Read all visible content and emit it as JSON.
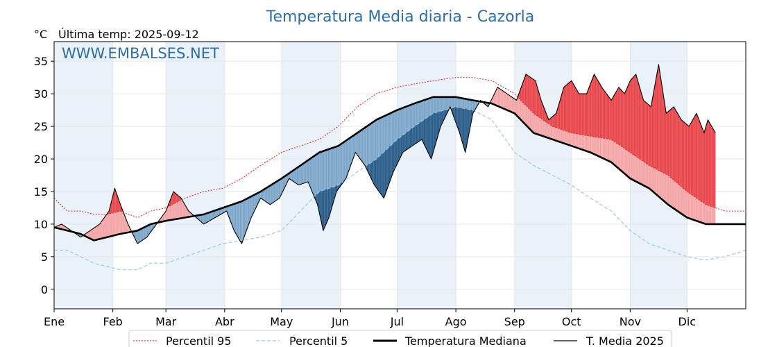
{
  "chart_data": {
    "type": "line",
    "title": "Temperatura Media diaria - Cazorla",
    "unit_label": "°C",
    "last_temp_label": "Última temp: 2025-09-12",
    "watermark": "WWW.EMBALSES.NET",
    "months": [
      "Ene",
      "Feb",
      "Mar",
      "Abr",
      "May",
      "Jun",
      "Jul",
      "Ago",
      "Sep",
      "Oct",
      "Nov",
      "Dic"
    ],
    "y_ticks": [
      0,
      5,
      10,
      15,
      20,
      25,
      30,
      35
    ],
    "ylim": [
      -3,
      38
    ],
    "xlim": [
      1,
      366
    ],
    "grid": true,
    "legend_position": "bottom-center",
    "colors": {
      "p95": "#e31a1c",
      "p5": "#9ecae1",
      "median": "#000000",
      "current": "#000000",
      "above_fill": "#f4a6a6",
      "above_strong_fill": "#e8474c",
      "below_fill": "#7da7ca",
      "below_strong_fill": "#2c5f8a",
      "month_band": "#e9f1f9",
      "title": "#2e6ea6"
    },
    "series": [
      {
        "name": "Percentil 95",
        "style": "dotted",
        "points": [
          [
            1,
            14
          ],
          [
            8,
            12
          ],
          [
            15,
            12
          ],
          [
            22,
            11.5
          ],
          [
            29,
            11.5
          ],
          [
            36,
            12
          ],
          [
            45,
            11
          ],
          [
            52,
            12
          ],
          [
            60,
            12.5
          ],
          [
            70,
            14
          ],
          [
            80,
            15
          ],
          [
            90,
            15.5
          ],
          [
            100,
            17
          ],
          [
            110,
            19
          ],
          [
            121,
            21
          ],
          [
            131,
            22
          ],
          [
            141,
            23
          ],
          [
            151,
            25
          ],
          [
            161,
            28
          ],
          [
            171,
            30
          ],
          [
            182,
            31
          ],
          [
            191,
            31.5
          ],
          [
            201,
            32
          ],
          [
            213,
            32.5
          ],
          [
            222,
            32.5
          ],
          [
            232,
            32
          ],
          [
            244,
            30
          ],
          [
            254,
            27
          ],
          [
            264,
            25
          ],
          [
            274,
            24
          ],
          [
            284,
            23.5
          ],
          [
            295,
            23
          ],
          [
            305,
            21
          ],
          [
            315,
            19
          ],
          [
            325,
            17.5
          ],
          [
            335,
            15
          ],
          [
            345,
            13
          ],
          [
            355,
            12
          ],
          [
            366,
            12
          ]
        ]
      },
      {
        "name": "Percentil 5",
        "style": "dashed",
        "points": [
          [
            1,
            6
          ],
          [
            8,
            6
          ],
          [
            15,
            5
          ],
          [
            22,
            4
          ],
          [
            29,
            3.5
          ],
          [
            36,
            3
          ],
          [
            45,
            3
          ],
          [
            52,
            4
          ],
          [
            60,
            4
          ],
          [
            70,
            5
          ],
          [
            80,
            6
          ],
          [
            90,
            7
          ],
          [
            100,
            7.5
          ],
          [
            110,
            8
          ],
          [
            121,
            9
          ],
          [
            131,
            12
          ],
          [
            141,
            15
          ],
          [
            151,
            16
          ],
          [
            161,
            18
          ],
          [
            171,
            20
          ],
          [
            182,
            23
          ],
          [
            191,
            25
          ],
          [
            201,
            27
          ],
          [
            213,
            28
          ],
          [
            222,
            27.5
          ],
          [
            232,
            26
          ],
          [
            244,
            21
          ],
          [
            254,
            19
          ],
          [
            264,
            17.5
          ],
          [
            274,
            16
          ],
          [
            284,
            14
          ],
          [
            295,
            12
          ],
          [
            305,
            9
          ],
          [
            315,
            7
          ],
          [
            325,
            6
          ],
          [
            335,
            5
          ],
          [
            345,
            4.5
          ],
          [
            355,
            5
          ],
          [
            366,
            6
          ]
        ]
      },
      {
        "name": "Temperatura Mediana",
        "style": "solid-thick",
        "points": [
          [
            1,
            9.5
          ],
          [
            8,
            9
          ],
          [
            15,
            8.5
          ],
          [
            22,
            7.5
          ],
          [
            29,
            8
          ],
          [
            36,
            8.5
          ],
          [
            45,
            9
          ],
          [
            52,
            10
          ],
          [
            60,
            10.5
          ],
          [
            70,
            11
          ],
          [
            80,
            11.5
          ],
          [
            90,
            12.5
          ],
          [
            100,
            13.5
          ],
          [
            110,
            15
          ],
          [
            121,
            17
          ],
          [
            131,
            19
          ],
          [
            141,
            21
          ],
          [
            151,
            22
          ],
          [
            161,
            24
          ],
          [
            171,
            26
          ],
          [
            182,
            27.5
          ],
          [
            191,
            28.5
          ],
          [
            201,
            29.5
          ],
          [
            213,
            29.5
          ],
          [
            222,
            29
          ],
          [
            232,
            28.5
          ],
          [
            244,
            27
          ],
          [
            254,
            24
          ],
          [
            264,
            23
          ],
          [
            274,
            22
          ],
          [
            284,
            21
          ],
          [
            295,
            19.5
          ],
          [
            305,
            17
          ],
          [
            315,
            15.5
          ],
          [
            325,
            13
          ],
          [
            335,
            11
          ],
          [
            345,
            10
          ],
          [
            355,
            10
          ],
          [
            366,
            10
          ]
        ]
      },
      {
        "name": "T. Media 2025",
        "style": "solid",
        "points": [
          [
            1,
            9.5
          ],
          [
            5,
            10
          ],
          [
            10,
            9
          ],
          [
            15,
            8
          ],
          [
            20,
            9
          ],
          [
            25,
            10
          ],
          [
            30,
            12
          ],
          [
            33,
            15.5
          ],
          [
            36,
            13
          ],
          [
            40,
            10
          ],
          [
            45,
            7
          ],
          [
            50,
            8
          ],
          [
            55,
            10
          ],
          [
            60,
            12
          ],
          [
            64,
            15
          ],
          [
            68,
            14
          ],
          [
            72,
            12
          ],
          [
            76,
            11
          ],
          [
            80,
            10
          ],
          [
            86,
            11
          ],
          [
            92,
            12
          ],
          [
            96,
            9
          ],
          [
            100,
            7
          ],
          [
            105,
            11
          ],
          [
            110,
            14
          ],
          [
            115,
            13
          ],
          [
            120,
            14
          ],
          [
            125,
            17
          ],
          [
            130,
            16
          ],
          [
            135,
            16.5
          ],
          [
            140,
            13
          ],
          [
            143,
            9
          ],
          [
            146,
            11
          ],
          [
            150,
            15
          ],
          [
            155,
            17
          ],
          [
            160,
            21
          ],
          [
            165,
            19
          ],
          [
            170,
            16
          ],
          [
            175,
            14
          ],
          [
            180,
            18
          ],
          [
            185,
            21
          ],
          [
            190,
            22
          ],
          [
            195,
            23
          ],
          [
            200,
            20
          ],
          [
            205,
            25
          ],
          [
            210,
            28
          ],
          [
            215,
            24
          ],
          [
            218,
            21
          ],
          [
            222,
            27
          ],
          [
            226,
            29
          ],
          [
            230,
            28
          ],
          [
            235,
            31
          ],
          [
            240,
            30
          ],
          [
            245,
            29
          ],
          [
            250,
            33
          ],
          [
            255,
            32
          ],
          [
            258,
            29
          ],
          [
            262,
            26
          ],
          [
            266,
            27
          ],
          [
            270,
            31
          ],
          [
            274,
            32
          ],
          [
            278,
            30
          ],
          [
            282,
            30
          ],
          [
            286,
            33
          ],
          [
            290,
            31
          ],
          [
            295,
            29
          ],
          [
            299,
            31
          ],
          [
            302,
            30
          ],
          [
            305,
            32
          ],
          [
            308,
            33
          ],
          [
            312,
            29
          ],
          [
            316,
            28
          ],
          [
            320,
            34.5
          ],
          [
            324,
            27
          ],
          [
            328,
            28
          ],
          [
            332,
            26
          ],
          [
            336,
            25
          ],
          [
            340,
            27
          ],
          [
            344,
            24
          ],
          [
            346,
            26
          ],
          [
            350,
            24
          ]
        ]
      }
    ]
  },
  "legend": {
    "items": [
      {
        "label": "Percentil 95"
      },
      {
        "label": "Percentil 5"
      },
      {
        "label": "Temperatura Mediana"
      },
      {
        "label": "T. Media 2025"
      }
    ]
  }
}
